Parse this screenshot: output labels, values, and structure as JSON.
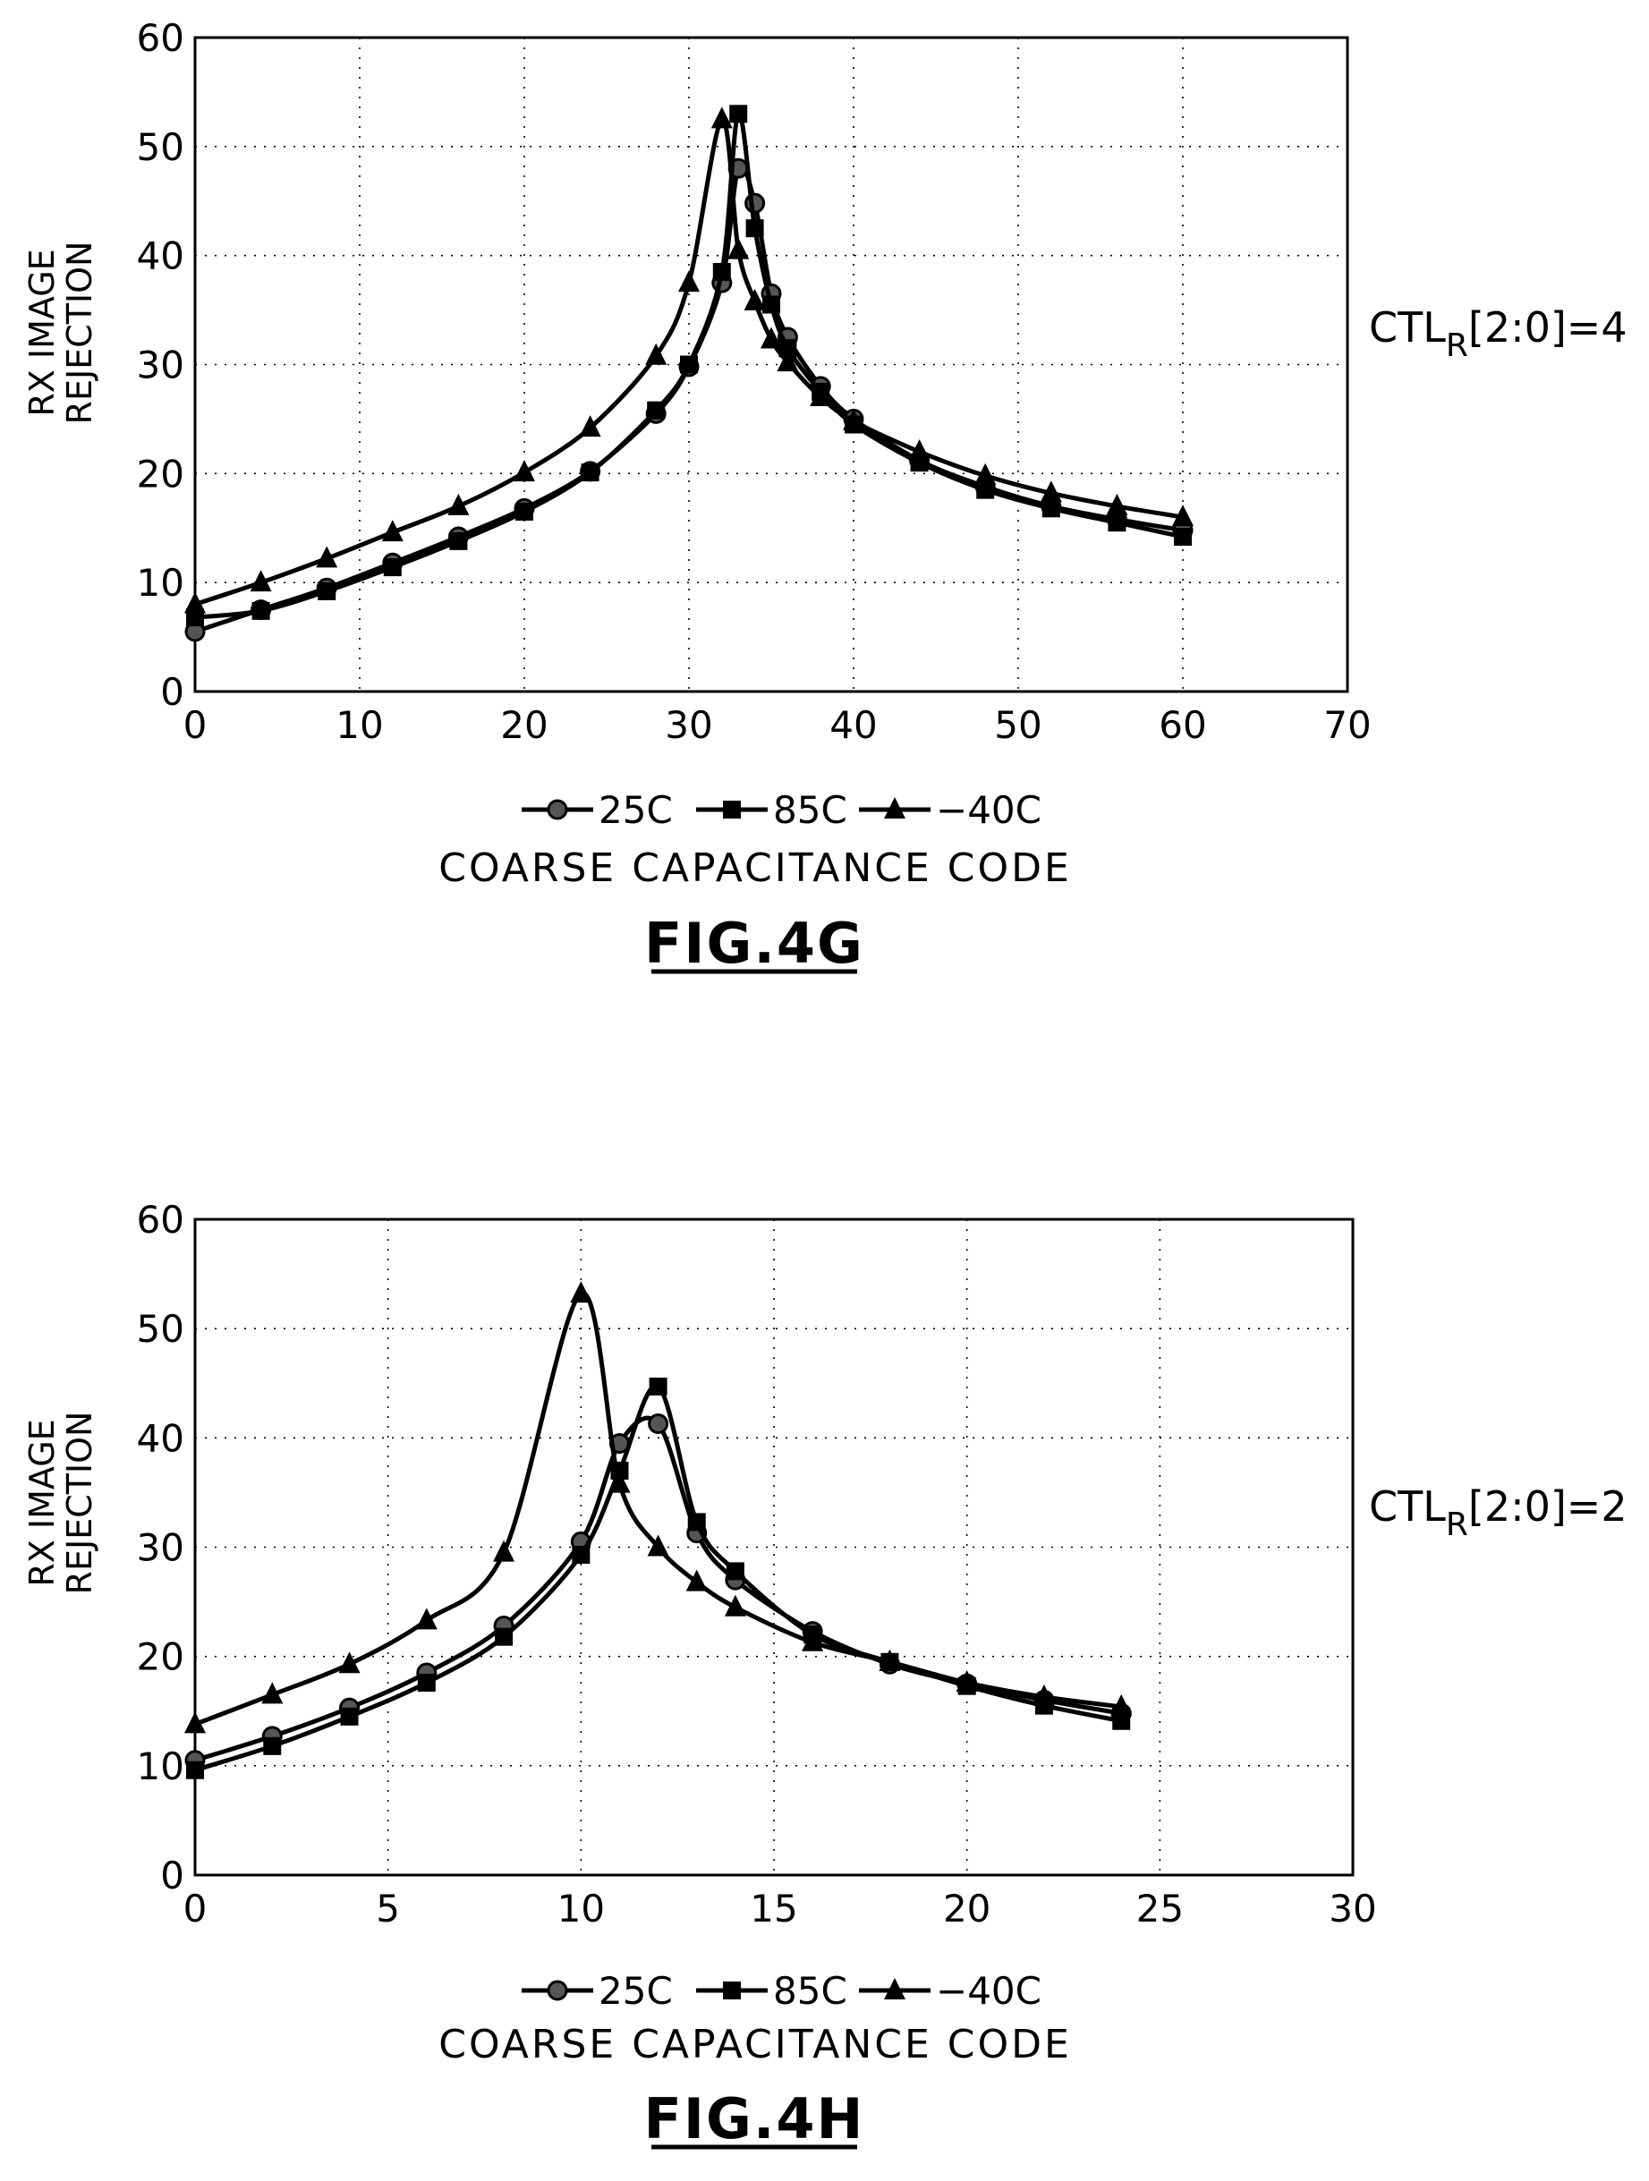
{
  "chart_data": [
    {
      "id": "fig4g",
      "type": "line",
      "figure_label": "FIG.4G",
      "side_note": {
        "main": "CTL",
        "sub": "R",
        "rest": "[2:0]=4"
      },
      "ylabel_lines": [
        "RX IMAGE",
        "REJECTION"
      ],
      "xlabel": "COARSE CAPACITANCE CODE",
      "xlim": [
        0,
        70
      ],
      "ylim": [
        0,
        60
      ],
      "xticks": [
        0,
        10,
        20,
        30,
        40,
        50,
        60,
        70
      ],
      "yticks": [
        0,
        10,
        20,
        30,
        40,
        50,
        60
      ],
      "grid": true,
      "legend": "bottom",
      "series": [
        {
          "name": "25C",
          "marker": "circle",
          "points": [
            [
              0,
              5.5
            ],
            [
              4,
              7.5
            ],
            [
              8,
              9.5
            ],
            [
              12,
              11.8
            ],
            [
              16,
              14.2
            ],
            [
              20,
              16.8
            ],
            [
              24,
              20.2
            ],
            [
              28,
              25.5
            ],
            [
              30,
              29.8
            ],
            [
              32,
              37.5
            ],
            [
              33,
              48
            ],
            [
              34,
              44.8
            ],
            [
              35,
              36.5
            ],
            [
              36,
              32.5
            ],
            [
              38,
              28
            ],
            [
              40,
              25
            ],
            [
              44,
              21.2
            ],
            [
              48,
              18.8
            ],
            [
              52,
              17
            ],
            [
              56,
              15.8
            ],
            [
              60,
              14.8
            ]
          ]
        },
        {
          "name": "85C",
          "marker": "square",
          "points": [
            [
              0,
              6.8
            ],
            [
              4,
              7.4
            ],
            [
              8,
              9.2
            ],
            [
              12,
              11.4
            ],
            [
              16,
              13.8
            ],
            [
              20,
              16.5
            ],
            [
              24,
              20.1
            ],
            [
              28,
              25.8
            ],
            [
              30,
              30
            ],
            [
              32,
              38.5
            ],
            [
              33,
              53
            ],
            [
              34,
              42.5
            ],
            [
              35,
              35.5
            ],
            [
              36,
              31.5
            ],
            [
              38,
              27.5
            ],
            [
              40,
              24.5
            ],
            [
              44,
              21
            ],
            [
              48,
              18.5
            ],
            [
              52,
              16.8
            ],
            [
              56,
              15.5
            ],
            [
              60,
              14.2
            ]
          ]
        },
        {
          "name": "-40C",
          "marker": "triangle",
          "points": [
            [
              0,
              8
            ],
            [
              4,
              10
            ],
            [
              8,
              12.2
            ],
            [
              12,
              14.6
            ],
            [
              16,
              17
            ],
            [
              20,
              20.1
            ],
            [
              24,
              24.2
            ],
            [
              28,
              30.8
            ],
            [
              30,
              37.5
            ],
            [
              32,
              52.5
            ],
            [
              33,
              40.5
            ],
            [
              34,
              35.8
            ],
            [
              35,
              32.3
            ],
            [
              36,
              30.2
            ],
            [
              38,
              27
            ],
            [
              40,
              24.8
            ],
            [
              44,
              22
            ],
            [
              48,
              19.8
            ],
            [
              52,
              18.2
            ],
            [
              56,
              17
            ],
            [
              60,
              16
            ]
          ]
        }
      ]
    },
    {
      "id": "fig4h",
      "type": "line",
      "figure_label": "FIG.4H",
      "side_note": {
        "main": "CTL",
        "sub": "R",
        "rest": "[2:0]=2"
      },
      "ylabel_lines": [
        "RX IMAGE",
        "REJECTION"
      ],
      "xlabel": "COARSE CAPACITANCE CODE",
      "xlim": [
        0,
        30
      ],
      "ylim": [
        0,
        60
      ],
      "xticks": [
        0,
        5,
        10,
        15,
        20,
        25,
        30
      ],
      "yticks": [
        0,
        10,
        20,
        30,
        40,
        50,
        60
      ],
      "grid": true,
      "legend": "bottom",
      "series": [
        {
          "name": "25C",
          "marker": "circle",
          "points": [
            [
              0,
              10.5
            ],
            [
              2,
              12.7
            ],
            [
              4,
              15.3
            ],
            [
              6,
              18.5
            ],
            [
              8,
              22.8
            ],
            [
              10,
              30.5
            ],
            [
              11,
              39.5
            ],
            [
              12,
              41.3
            ],
            [
              13,
              31.3
            ],
            [
              14,
              27
            ],
            [
              16,
              22.3
            ],
            [
              18,
              19.3
            ],
            [
              20,
              17.5
            ],
            [
              22,
              16
            ],
            [
              24,
              14.8
            ]
          ]
        },
        {
          "name": "85C",
          "marker": "square",
          "points": [
            [
              0,
              9.6
            ],
            [
              2,
              11.8
            ],
            [
              4,
              14.5
            ],
            [
              6,
              17.6
            ],
            [
              8,
              21.8
            ],
            [
              10,
              29.3
            ],
            [
              11,
              37
            ],
            [
              12,
              44.7
            ],
            [
              13,
              32.3
            ],
            [
              14,
              27.8
            ],
            [
              16,
              22
            ],
            [
              18,
              19.5
            ],
            [
              20,
              17.3
            ],
            [
              22,
              15.5
            ],
            [
              24,
              14.1
            ]
          ]
        },
        {
          "name": "-40C",
          "marker": "triangle",
          "points": [
            [
              0,
              13.8
            ],
            [
              2,
              16.5
            ],
            [
              4,
              19.3
            ],
            [
              6,
              23.3
            ],
            [
              8,
              29.5
            ],
            [
              10,
              53.2
            ],
            [
              11,
              35.8
            ],
            [
              12,
              30
            ],
            [
              13,
              26.8
            ],
            [
              14,
              24.5
            ],
            [
              16,
              21.3
            ],
            [
              18,
              19.5
            ],
            [
              20,
              17.6
            ],
            [
              22,
              16.3
            ],
            [
              24,
              15.4
            ]
          ]
        }
      ]
    }
  ]
}
